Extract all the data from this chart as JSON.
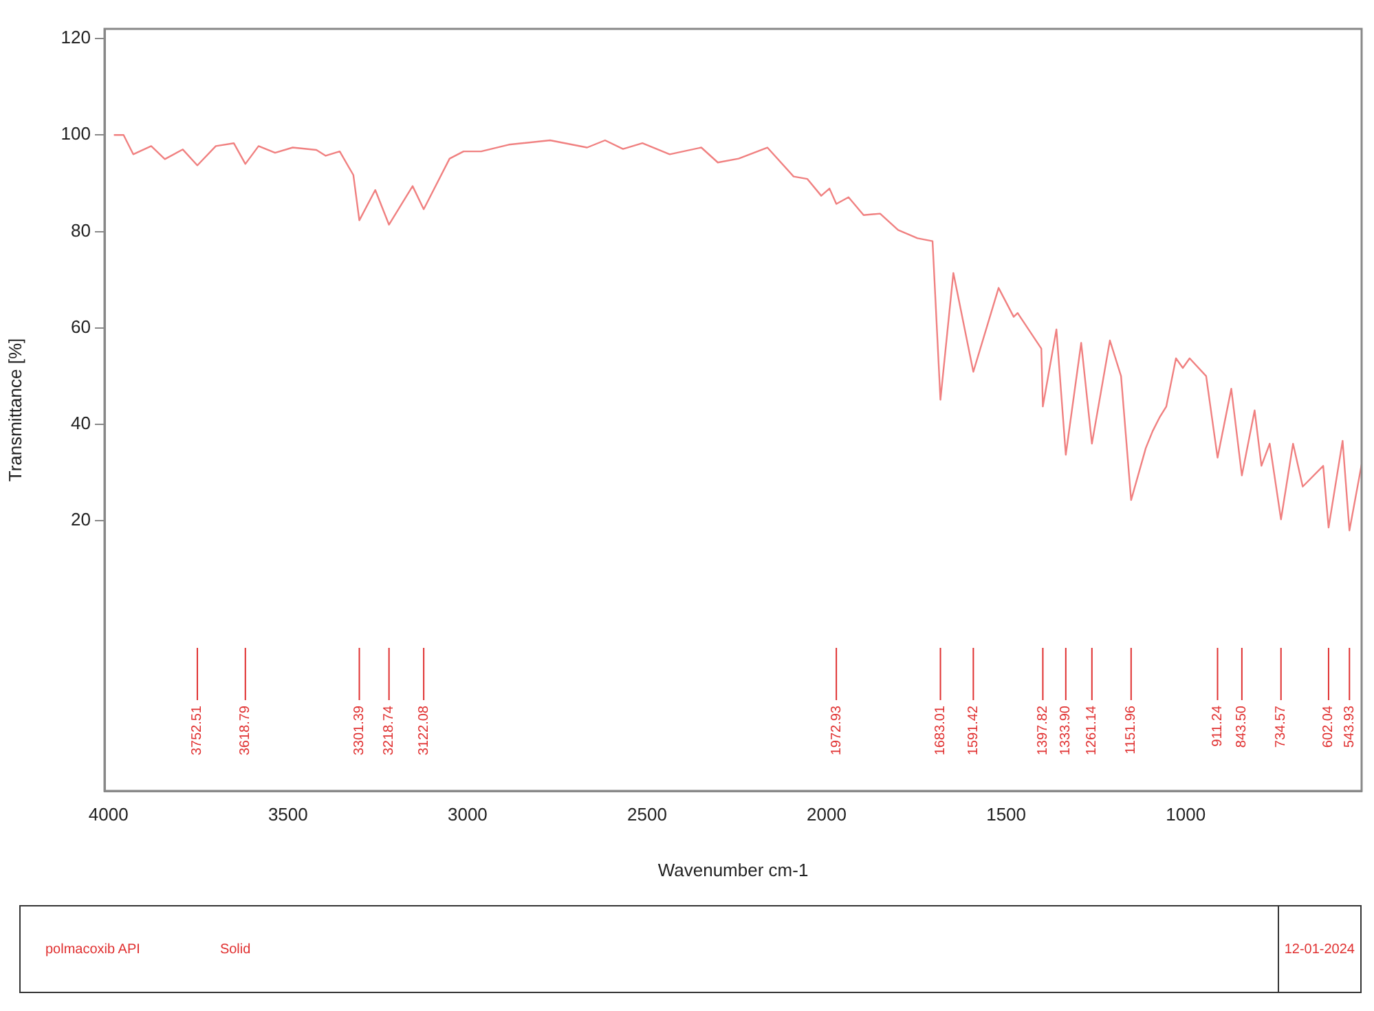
{
  "chart_data": {
    "type": "line",
    "xlabel": "Wavenumber cm-1",
    "ylabel": "Transmittance [%]",
    "x": [
      3985,
      3958,
      3931,
      3881,
      3843,
      3793,
      3752.51,
      3701,
      3651,
      3618.79,
      3582,
      3536,
      3487,
      3421,
      3395,
      3356,
      3318,
      3301.39,
      3257,
      3218.74,
      3153,
      3122.08,
      3050,
      3011,
      2962,
      2885,
      2770,
      2667,
      2617,
      2567,
      2513,
      2437,
      2349,
      2303,
      2245,
      2165,
      2092,
      2054,
      2015,
      1992,
      1972.93,
      1939,
      1897,
      1851,
      1801,
      1747,
      1705,
      1683.01,
      1647,
      1591.42,
      1521,
      1479,
      1468,
      1402,
      1397.82,
      1360,
      1333.9,
      1291,
      1261.14,
      1211,
      1180,
      1151.96,
      1111,
      1092,
      1073,
      1054,
      1027,
      1008,
      989,
      943,
      911.24,
      873,
      843.5,
      808,
      789,
      766,
      734.57,
      701,
      674,
      617,
      602.04,
      563,
      543.93,
      510
    ],
    "series": [
      {
        "color": "#f08080",
        "values": [
          100,
          100,
          96,
          97.7,
          95,
          97,
          93.7,
          97.7,
          98.3,
          94,
          97.7,
          96.3,
          97.4,
          96.9,
          95.7,
          96.6,
          91.7,
          82.3,
          88.6,
          81.4,
          89.4,
          84.6,
          95.1,
          96.6,
          96.6,
          98,
          98.9,
          97.4,
          98.9,
          97.1,
          98.3,
          96,
          97.4,
          94.3,
          95.1,
          97.4,
          91.4,
          90.9,
          87.4,
          88.9,
          85.7,
          87.1,
          83.4,
          83.7,
          80.3,
          78.6,
          78,
          45.1,
          71.4,
          50.9,
          68.3,
          62.3,
          63.1,
          55.7,
          43.7,
          59.7,
          33.7,
          56.9,
          36,
          57.4,
          50,
          24.3,
          35.1,
          38.6,
          41.4,
          43.7,
          53.7,
          51.7,
          53.7,
          50,
          33.1,
          47.4,
          29.4,
          42.9,
          31.4,
          36,
          20.3,
          36,
          27.1,
          31.4,
          18.6,
          36.6,
          18,
          31.7
        ]
      }
    ],
    "xlim": [
      4011,
      510
    ],
    "xticks": [
      4000,
      3500,
      3000,
      2500,
      2000,
      1500,
      1000
    ],
    "ylim": [
      -36,
      122
    ],
    "yticks": [
      20,
      40,
      60,
      80,
      100,
      120
    ],
    "grid": false,
    "legend": false,
    "marker": "none",
    "line_style": "solid",
    "ref_lines": [
      {
        "axis": "x",
        "value": 3752.51,
        "label": "3752.51"
      },
      {
        "axis": "x",
        "value": 3618.79,
        "label": "3618.79"
      },
      {
        "axis": "x",
        "value": 3301.39,
        "label": "3301.39"
      },
      {
        "axis": "x",
        "value": 3218.74,
        "label": "3218.74"
      },
      {
        "axis": "x",
        "value": 3122.08,
        "label": "3122.08"
      },
      {
        "axis": "x",
        "value": 1972.93,
        "label": "1972.93"
      },
      {
        "axis": "x",
        "value": 1683.01,
        "label": "1683.01"
      },
      {
        "axis": "x",
        "value": 1591.42,
        "label": "1591.42"
      },
      {
        "axis": "x",
        "value": 1397.82,
        "label": "1397.82"
      },
      {
        "axis": "x",
        "value": 1333.9,
        "label": "1333.90"
      },
      {
        "axis": "x",
        "value": 1261.14,
        "label": "1261.14"
      },
      {
        "axis": "x",
        "value": 1151.96,
        "label": "1151.96"
      },
      {
        "axis": "x",
        "value": 911.24,
        "label": "911.24"
      },
      {
        "axis": "x",
        "value": 843.5,
        "label": "843.50"
      },
      {
        "axis": "x",
        "value": 734.57,
        "label": "734.57"
      },
      {
        "axis": "x",
        "value": 602.04,
        "label": "602.04"
      },
      {
        "axis": "x",
        "value": 543.93,
        "label": "543.93"
      }
    ],
    "annotations": [
      "polmacoxib API",
      "Solid",
      "12-01-2024"
    ]
  }
}
